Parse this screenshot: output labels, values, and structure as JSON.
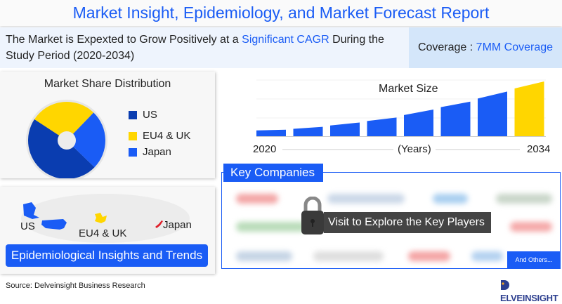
{
  "header": {
    "title": "Market Insight, Epidemiology, and Market Forecast Report"
  },
  "summary": {
    "text_before": "The Market is Expexted to Grow Positively at a ",
    "highlight": "Significant CAGR",
    "text_after": " During the Study Period (2020-2034)"
  },
  "coverage": {
    "label": "Coverage : ",
    "value": "7MM Coverage"
  },
  "colors": {
    "accent": "#1a5cf5",
    "us": "#0a3db0",
    "eu": "#ffd600",
    "japan": "#1a5cf5"
  },
  "chart_data": [
    {
      "type": "pie",
      "title": "Market Share Distribution",
      "legend_placement": "right",
      "slices": [
        {
          "name": "US",
          "value": 47
        },
        {
          "name": "EU4 & UK",
          "value": 28
        },
        {
          "name": "Japan",
          "value": 25
        }
      ]
    },
    {
      "type": "bar",
      "title": "Market Size",
      "xlabel": "(Years)",
      "x_tick_labels": [
        "2020",
        "2034"
      ],
      "values": [
        9,
        13,
        19,
        26,
        37,
        48,
        62,
        76
      ],
      "highlight_last": true,
      "grid": true
    }
  ],
  "map": {
    "regions": [
      "US",
      "EU4 & UK",
      "Japan"
    ],
    "banner": "Epidemiological Insights and Trends"
  },
  "key_companies": {
    "title": "Key Companies",
    "cta": "Visit to Explore the Key Players",
    "others": "And Others..."
  },
  "footer": {
    "source": "Source: Delveinsight Business Research",
    "logo": "DELVEINSIGHT"
  }
}
